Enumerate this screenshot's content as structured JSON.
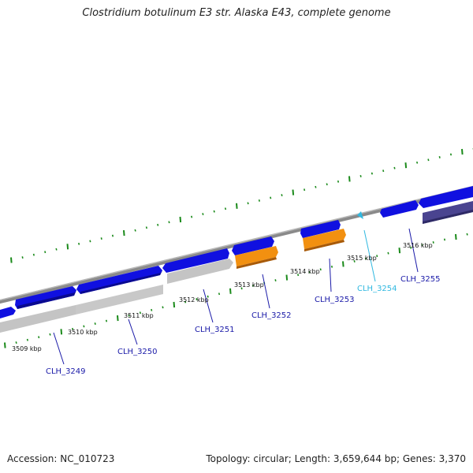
{
  "title": "Clostridium botulinum E3 str. Alaska E43, complete genome",
  "footer": {
    "accession": "Accession: NC_010723",
    "stats": "Topology: circular; Length: 3,659,644 bp; Genes: 3,370"
  },
  "colors": {
    "cds_forward": "#1010e0",
    "cds_grey": "#c4c4c4",
    "rna_orange": "#f29010",
    "pseudo_purple": "#4a4490",
    "trna_cyan": "#30b8e0",
    "label_blue": "#1a1aa8",
    "label_cyan": "#30b8e0",
    "tick_green": "#1a8a1a",
    "backbone": "#808080"
  },
  "scale_labels": [
    "3509 kbp",
    "3510 kbp",
    "3511 kbp",
    "3512 kbp",
    "3513 kbp",
    "3514 kbp",
    "3515 kbp",
    "3516 kbp"
  ],
  "gene_labels": [
    {
      "text": "CLH_3249",
      "color": "label_blue"
    },
    {
      "text": "CLH_3250",
      "color": "label_blue"
    },
    {
      "text": "CLH_3251",
      "color": "label_blue"
    },
    {
      "text": "CLH_3252",
      "color": "label_blue"
    },
    {
      "text": "CLH_3253",
      "color": "label_blue"
    },
    {
      "text": "CLH_3254",
      "color": "label_cyan"
    },
    {
      "text": "CLH_3255",
      "color": "label_blue"
    }
  ]
}
